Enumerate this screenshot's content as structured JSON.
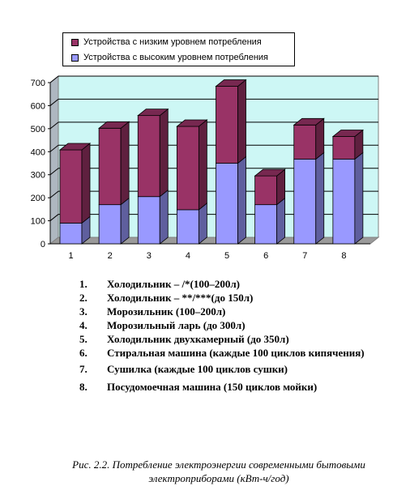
{
  "chart_data": {
    "type": "bar",
    "stacked": true,
    "categories": [
      "1",
      "2",
      "3",
      "4",
      "5",
      "6",
      "7",
      "8"
    ],
    "series": [
      {
        "name": "Устройства с высоким уровнем потребления",
        "color": "#9999ff",
        "values": [
          90,
          170,
          205,
          148,
          350,
          170,
          368,
          368
        ]
      },
      {
        "name": "Устройства с низким уровнем потребления",
        "color": "#993366",
        "values": [
          318,
          332,
          352,
          362,
          334,
          125,
          148,
          98
        ]
      }
    ],
    "ylim": [
      0,
      700
    ],
    "yticks": [
      "0",
      "100",
      "200",
      "300",
      "400",
      "500",
      "600",
      "700"
    ],
    "grid": true,
    "legend": "top",
    "wall_color": "#cdf7f5"
  },
  "notes": [
    {
      "num": "1.",
      "text": "Холодильник – /*(100–200л)"
    },
    {
      "num": "2.",
      "text": "Холодильник – **/***(до 150л)"
    },
    {
      "num": "3.",
      "text": "Морозильник (100–200л)"
    },
    {
      "num": "4.",
      "text": "Морозильный ларь (до 300л)"
    },
    {
      "num": "5.",
      "text": "Холодильник двухкамерный (до 350л)"
    },
    {
      "num": "6.",
      "text": "Стиральная машина (каждые 100 циклов кипячения)"
    },
    {
      "num": "7.",
      "text": "Сушилка (каждые 100 циклов сушки)"
    },
    {
      "num": "8.",
      "text": "Посудомоечная машина (150 циклов мойки)"
    }
  ],
  "caption": "Рис. 2.2. Потребление электроэнергии современными бытовыми электроприборами (кВт-ч/год)"
}
